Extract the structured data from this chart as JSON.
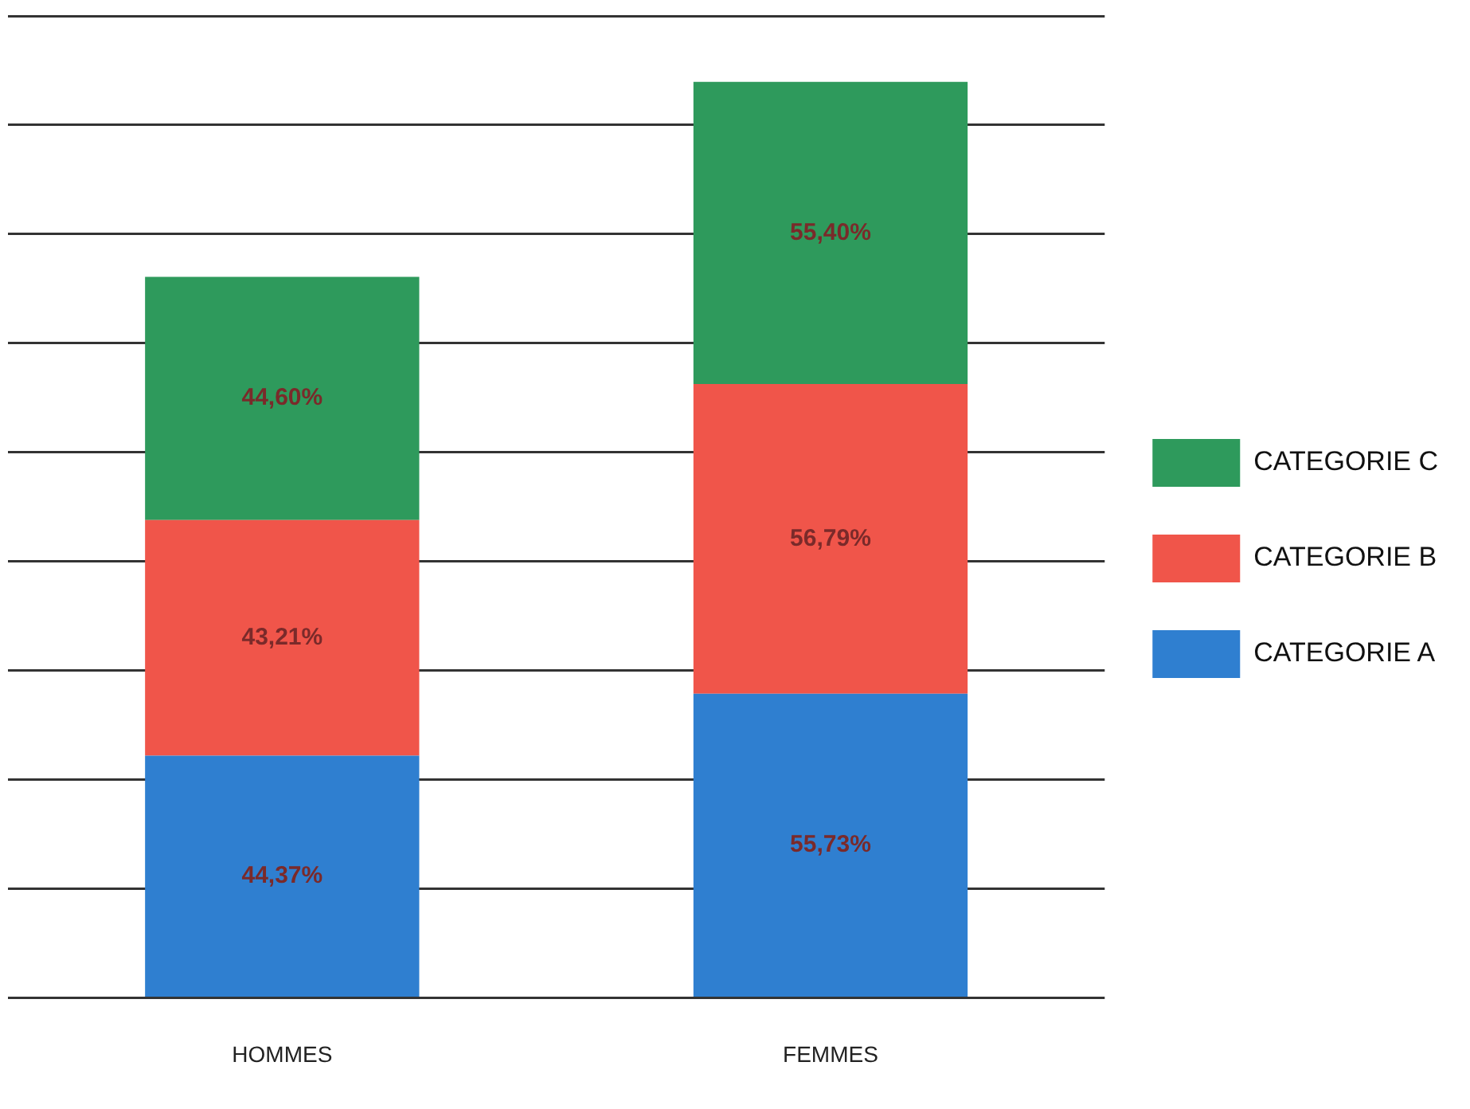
{
  "chart_data": {
    "type": "bar",
    "stacked": true,
    "categories": [
      "HOMMES",
      "FEMMES"
    ],
    "series": [
      {
        "name": "CATEGORIE A",
        "color": "#2f7fd0",
        "values": [
          44.37,
          55.73
        ],
        "value_labels": [
          "44,37%",
          "55,73%"
        ]
      },
      {
        "name": "CATEGORIE B",
        "color": "#f0554a",
        "values": [
          43.21,
          56.79
        ],
        "value_labels": [
          "43,21%",
          "56,79%"
        ]
      },
      {
        "name": "CATEGORIE C",
        "color": "#2e9a5c",
        "values": [
          44.6,
          55.4
        ],
        "value_labels": [
          "44,60%",
          "55,40%"
        ]
      }
    ],
    "ylim": [
      0,
      180
    ],
    "yticks": [
      {
        "value": 0,
        "label": null
      },
      {
        "value": 20,
        "label": null
      },
      {
        "value": 40,
        "label": null
      },
      {
        "value": 60,
        "label": null
      },
      {
        "value": 80,
        "label": null
      },
      {
        "value": 100,
        "label": null
      },
      {
        "value": 120,
        "label": null
      },
      {
        "value": 140,
        "label": null
      },
      {
        "value": 160,
        "label": null
      },
      {
        "value": 180,
        "label": null
      }
    ],
    "grid": "y",
    "legend": "right",
    "tick_labels": "x"
  }
}
